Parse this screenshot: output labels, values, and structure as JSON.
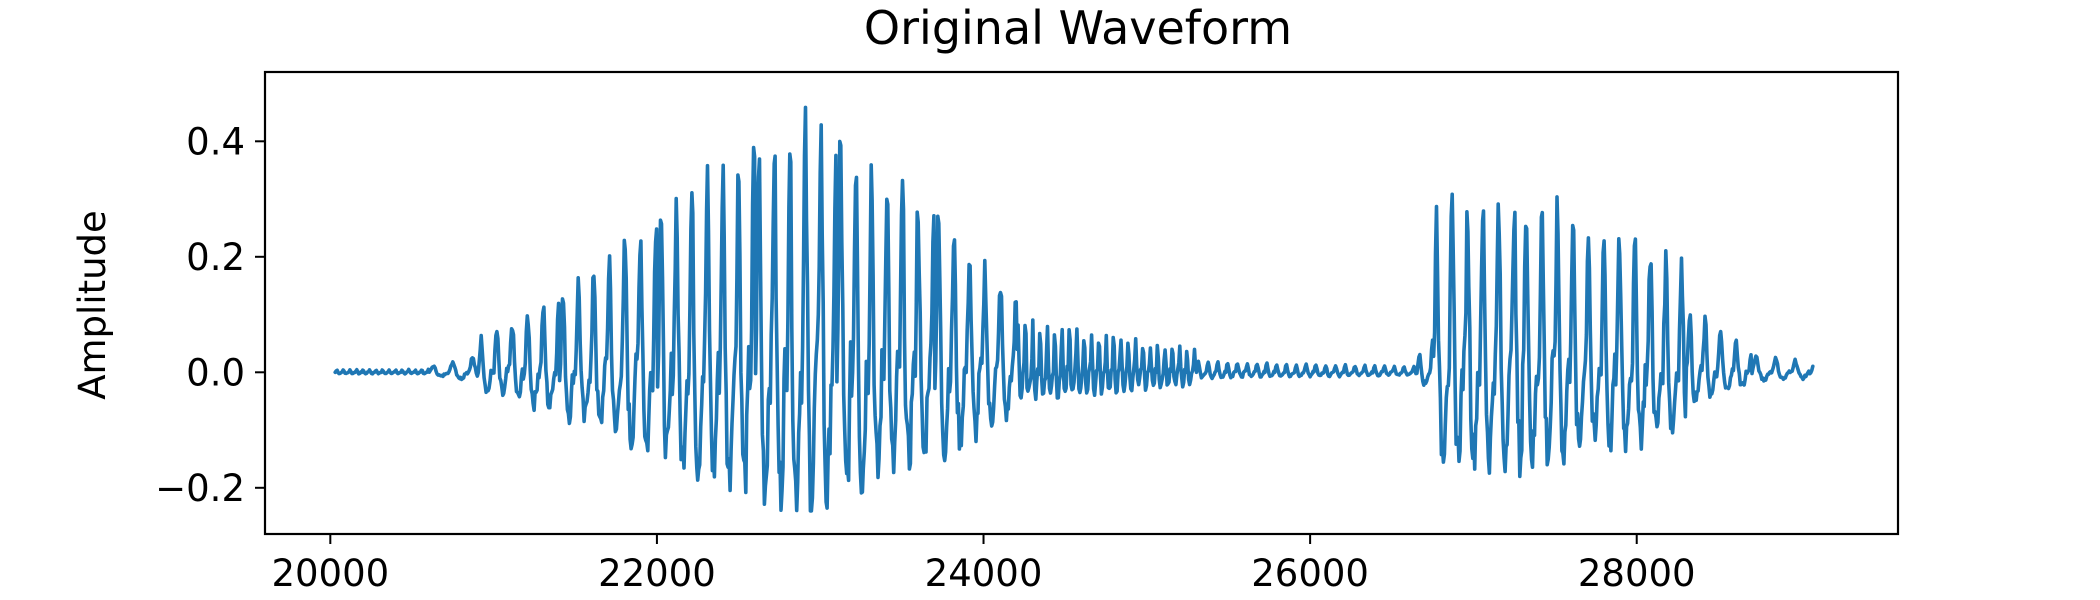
{
  "chart_data": {
    "type": "line",
    "title": "Original Waveform",
    "xlabel": "",
    "ylabel": "Amplitude",
    "xlim": [
      19600,
      29600
    ],
    "ylim": [
      -0.28,
      0.52
    ],
    "x_ticks": [
      20000,
      22000,
      24000,
      26000,
      28000
    ],
    "x_tick_labels": [
      "20000",
      "22000",
      "24000",
      "26000",
      "28000"
    ],
    "y_ticks": [
      0.4,
      0.2,
      0.0,
      -0.2
    ],
    "y_tick_labels": [
      "0.4",
      "0.2",
      "0.0",
      "−0.2"
    ],
    "grid": false,
    "color": "#1f77b4",
    "series": [
      {
        "x_start": 20030,
        "x_end": 29080,
        "segments": [
          {
            "x_start": 20030,
            "x_end": 20600,
            "envelope": [
              0.005,
              0.005
            ],
            "period": 40
          },
          {
            "x_start": 20600,
            "x_end": 20900,
            "envelope": [
              0.01,
              0.03
            ],
            "period": 120
          },
          {
            "x_start": 20900,
            "x_end": 21400,
            "envelope": [
              0.06,
              0.14
            ],
            "period": 95
          },
          {
            "x_start": 21400,
            "x_end": 22000,
            "envelope": [
              0.14,
              0.3
            ],
            "period": 95
          },
          {
            "x_start": 22000,
            "x_end": 22600,
            "envelope": [
              0.3,
              0.42
            ],
            "period": 95
          },
          {
            "x_start": 22600,
            "x_end": 23100,
            "envelope": [
              0.42,
              0.48
            ],
            "period": 95
          },
          {
            "x_start": 23100,
            "x_end": 23700,
            "envelope": [
              0.45,
              0.3
            ],
            "period": 95
          },
          {
            "x_start": 23700,
            "x_end": 24200,
            "envelope": [
              0.3,
              0.14
            ],
            "period": 95
          },
          {
            "x_start": 24200,
            "x_end": 25300,
            "envelope": [
              0.1,
              0.04
            ],
            "period": 45
          },
          {
            "x_start": 25300,
            "x_end": 26650,
            "envelope": [
              0.02,
              0.01
            ],
            "period": 60
          },
          {
            "x_start": 26650,
            "x_end": 26750,
            "envelope": [
              0.03,
              0.06
            ],
            "period": 80
          },
          {
            "x_start": 26750,
            "x_end": 27300,
            "envelope": [
              0.3,
              0.32
            ],
            "period": 95
          },
          {
            "x_start": 27300,
            "x_end": 28300,
            "envelope": [
              0.33,
              0.2
            ],
            "period": 95
          },
          {
            "x_start": 28300,
            "x_end": 28700,
            "envelope": [
              0.12,
              0.04
            ],
            "period": 95
          },
          {
            "x_start": 28700,
            "x_end": 29080,
            "envelope": [
              0.03,
              0.02
            ],
            "period": 120
          }
        ],
        "peak_max": 0.48,
        "peak_min": -0.24
      }
    ]
  }
}
